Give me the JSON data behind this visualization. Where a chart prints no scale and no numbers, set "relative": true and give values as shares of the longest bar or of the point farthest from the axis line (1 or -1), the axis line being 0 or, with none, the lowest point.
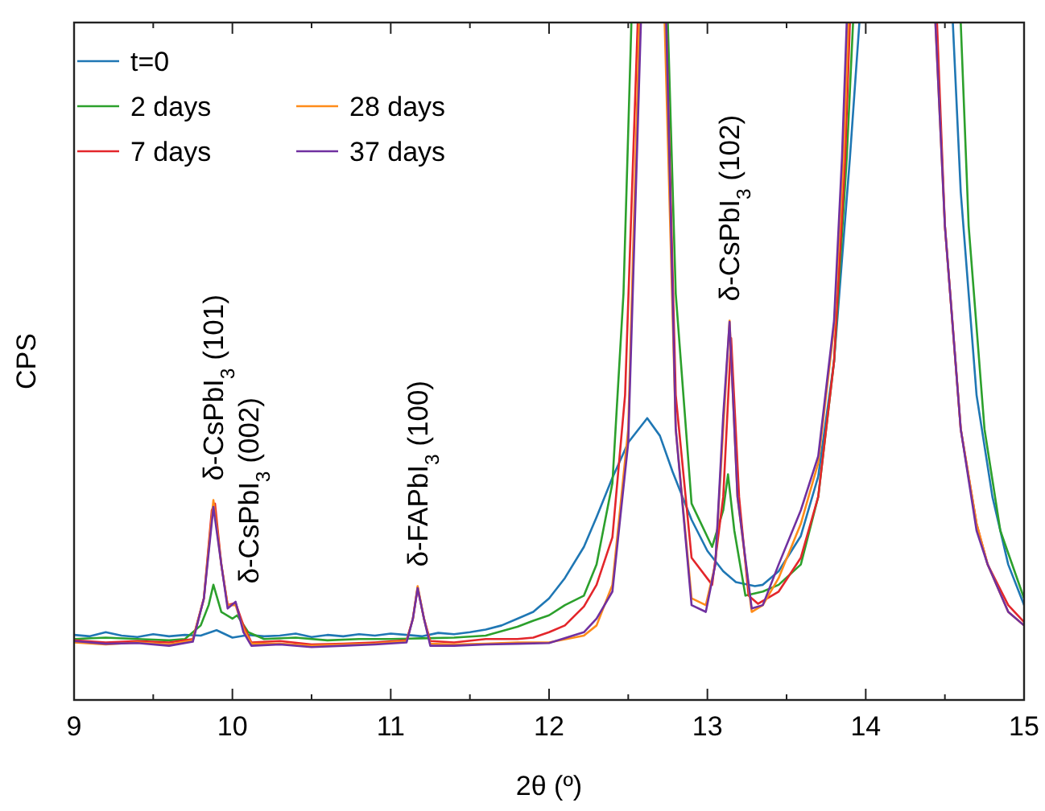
{
  "chart_data": {
    "type": "line",
    "relative": true,
    "xlabel": "2θ (º)",
    "ylabel": "CPS",
    "xlim": [
      9,
      15
    ],
    "xticks": [
      9,
      {
        "value": 9.5,
        "label": null
      },
      10,
      {
        "value": 10.5,
        "label": null
      },
      11,
      {
        "value": 11.5,
        "label": null
      },
      12,
      {
        "value": 12.5,
        "label": null
      },
      13,
      {
        "value": 13.5,
        "label": null
      },
      14,
      {
        "value": 14.5,
        "label": null
      },
      15
    ],
    "legend": "top left",
    "grid": false,
    "line_style": "solid",
    "annotations": [
      {
        "text": "δ-CsPbI$_{3}$ (101)",
        "x": 9.88,
        "y": 0.295
      },
      {
        "text": "δ-CsPbI$_{3}$ (002)",
        "x": 10.02,
        "y": 0.143
      },
      {
        "text": "δ-FAPbI$_{3}$ (100)",
        "x": 11.17,
        "y": 0.168
      },
      {
        "text": "δ-CsPbI$_{3}$ (102)",
        "x": 13.14,
        "y": 0.56
      }
    ],
    "series": [
      {
        "name": "t=0",
        "color": "#1f77b4",
        "x": [
          9.0,
          9.1,
          9.2,
          9.3,
          9.4,
          9.5,
          9.6,
          9.7,
          9.8,
          9.9,
          10.0,
          10.1,
          10.2,
          10.3,
          10.4,
          10.5,
          10.6,
          10.7,
          10.8,
          10.9,
          11.0,
          11.1,
          11.2,
          11.3,
          11.4,
          11.5,
          11.6,
          11.7,
          11.8,
          11.9,
          12.0,
          12.1,
          12.22,
          12.3,
          12.4,
          12.5,
          12.62,
          12.7,
          12.78,
          12.9,
          13.0,
          13.1,
          13.18,
          13.3,
          13.35,
          13.45,
          13.59,
          13.7,
          13.8,
          13.9,
          13.96,
          14.2,
          14.55,
          14.6,
          14.7,
          14.8,
          14.9,
          15.0
        ],
        "values": [
          0.096,
          0.094,
          0.1,
          0.095,
          0.093,
          0.097,
          0.094,
          0.096,
          0.095,
          0.103,
          0.092,
          0.096,
          0.094,
          0.095,
          0.098,
          0.093,
          0.096,
          0.094,
          0.097,
          0.095,
          0.098,
          0.096,
          0.094,
          0.099,
          0.097,
          0.1,
          0.104,
          0.11,
          0.12,
          0.13,
          0.15,
          0.18,
          0.226,
          0.27,
          0.328,
          0.38,
          0.416,
          0.39,
          0.337,
          0.266,
          0.22,
          0.19,
          0.174,
          0.168,
          0.17,
          0.19,
          0.242,
          0.33,
          0.5,
          0.8,
          1,
          null,
          1,
          0.75,
          0.45,
          0.3,
          0.2,
          0.14
        ]
      },
      {
        "name": "2 days",
        "color": "#2ca02c",
        "x": [
          9.0,
          9.2,
          9.4,
          9.6,
          9.7,
          9.8,
          9.85,
          9.88,
          9.93,
          10.0,
          10.03,
          10.1,
          10.2,
          10.4,
          10.6,
          10.8,
          11.0,
          11.2,
          11.4,
          11.6,
          11.8,
          11.9,
          12.0,
          12.1,
          12.22,
          12.3,
          12.4,
          12.47,
          12.52,
          12.6,
          12.75,
          12.8,
          12.9,
          13.03,
          13.1,
          13.13,
          13.17,
          13.24,
          13.35,
          13.45,
          13.59,
          13.7,
          13.8,
          13.88,
          13.92,
          14.2,
          14.6,
          14.65,
          14.75,
          14.85,
          15.0
        ],
        "values": [
          0.09,
          0.092,
          0.09,
          0.088,
          0.09,
          0.11,
          0.14,
          0.17,
          0.13,
          0.12,
          0.125,
          0.1,
          0.09,
          0.092,
          0.088,
          0.09,
          0.09,
          0.091,
          0.092,
          0.095,
          0.108,
          0.117,
          0.125,
          0.14,
          0.154,
          0.2,
          0.32,
          0.6,
          1,
          null,
          1,
          0.6,
          0.29,
          0.226,
          0.28,
          0.333,
          0.25,
          0.154,
          0.16,
          0.17,
          0.2,
          0.3,
          0.5,
          0.8,
          1,
          null,
          1,
          0.7,
          0.4,
          0.25,
          0.15
        ]
      },
      {
        "name": "7 days",
        "color": "#e3262b",
        "x": [
          9.0,
          9.2,
          9.4,
          9.6,
          9.75,
          9.82,
          9.87,
          9.89,
          9.93,
          9.97,
          10.02,
          10.07,
          10.12,
          10.3,
          10.5,
          10.7,
          10.9,
          11.1,
          11.14,
          11.17,
          11.21,
          11.25,
          11.4,
          11.6,
          11.8,
          11.9,
          12.0,
          12.1,
          12.22,
          12.3,
          12.4,
          12.48,
          12.56,
          12.65,
          12.74,
          12.8,
          12.9,
          13.03,
          13.1,
          13.15,
          13.2,
          13.26,
          13.32,
          13.45,
          13.59,
          13.7,
          13.8,
          13.87,
          13.9,
          14.2,
          14.45,
          14.5,
          14.6,
          14.7,
          14.77,
          14.9,
          15.0
        ],
        "values": [
          0.088,
          0.085,
          0.087,
          0.085,
          0.09,
          0.15,
          0.28,
          0.29,
          0.2,
          0.14,
          0.143,
          0.11,
          0.085,
          0.087,
          0.082,
          0.083,
          0.085,
          0.088,
          0.12,
          0.166,
          0.12,
          0.087,
          0.085,
          0.09,
          0.09,
          0.092,
          0.1,
          0.11,
          0.138,
          0.17,
          0.24,
          0.45,
          1,
          null,
          1,
          0.45,
          0.21,
          0.17,
          0.3,
          0.534,
          0.3,
          0.154,
          0.142,
          0.16,
          0.21,
          0.3,
          0.5,
          0.8,
          1,
          null,
          1,
          0.7,
          0.4,
          0.26,
          0.2,
          0.14,
          0.115
        ]
      },
      {
        "name": "28 days",
        "color": "#ff8c1a",
        "x": [
          9.0,
          9.2,
          9.4,
          9.6,
          9.75,
          9.82,
          9.88,
          9.93,
          9.97,
          10.02,
          10.07,
          10.12,
          10.3,
          10.5,
          10.7,
          10.9,
          11.1,
          11.14,
          11.17,
          11.21,
          11.25,
          11.4,
          11.6,
          11.8,
          12.0,
          12.22,
          12.3,
          12.4,
          12.5,
          12.57,
          12.65,
          12.73,
          12.8,
          12.9,
          12.99,
          13.05,
          13.1,
          13.14,
          13.19,
          13.28,
          13.35,
          13.45,
          13.59,
          13.7,
          13.8,
          13.86,
          13.89,
          14.2,
          14.44,
          14.5,
          14.6,
          14.7,
          14.77,
          14.9,
          15.0
        ],
        "values": [
          0.085,
          0.082,
          0.085,
          0.082,
          0.088,
          0.15,
          0.295,
          0.2,
          0.14,
          0.14,
          0.105,
          0.083,
          0.083,
          0.08,
          0.082,
          0.083,
          0.087,
          0.12,
          0.168,
          0.12,
          0.083,
          0.082,
          0.083,
          0.085,
          0.085,
          0.095,
          0.11,
          0.17,
          0.4,
          1,
          null,
          1,
          0.4,
          0.15,
          0.14,
          0.2,
          0.4,
          0.56,
          0.3,
          0.13,
          0.14,
          0.18,
          0.26,
          0.35,
          0.55,
          0.8,
          1,
          null,
          1,
          0.7,
          0.4,
          0.26,
          0.2,
          0.13,
          0.11
        ]
      },
      {
        "name": "37 days",
        "color": "#7030a0",
        "x": [
          9.0,
          9.2,
          9.4,
          9.6,
          9.75,
          9.82,
          9.88,
          9.93,
          9.97,
          10.02,
          10.07,
          10.12,
          10.3,
          10.5,
          10.7,
          10.9,
          11.1,
          11.14,
          11.17,
          11.21,
          11.25,
          11.4,
          11.6,
          11.8,
          12.0,
          12.22,
          12.3,
          12.4,
          12.5,
          12.58,
          12.65,
          12.74,
          12.8,
          12.9,
          12.99,
          13.05,
          13.1,
          13.14,
          13.19,
          13.28,
          13.35,
          13.45,
          13.59,
          13.7,
          13.8,
          13.85,
          13.88,
          14.2,
          14.44,
          14.5,
          14.6,
          14.7,
          14.77,
          14.9,
          15.0
        ],
        "values": [
          0.087,
          0.083,
          0.084,
          0.08,
          0.086,
          0.15,
          0.285,
          0.2,
          0.135,
          0.145,
          0.1,
          0.08,
          0.082,
          0.078,
          0.08,
          0.082,
          0.085,
          0.12,
          0.165,
          0.12,
          0.08,
          0.08,
          0.082,
          0.083,
          0.084,
          0.1,
          0.12,
          0.16,
          0.38,
          1,
          null,
          1,
          0.4,
          0.14,
          0.13,
          0.2,
          0.42,
          0.558,
          0.3,
          0.135,
          0.14,
          0.2,
          0.28,
          0.36,
          0.56,
          0.8,
          1,
          null,
          1,
          0.7,
          0.4,
          0.25,
          0.2,
          0.13,
          0.11
        ]
      }
    ]
  }
}
